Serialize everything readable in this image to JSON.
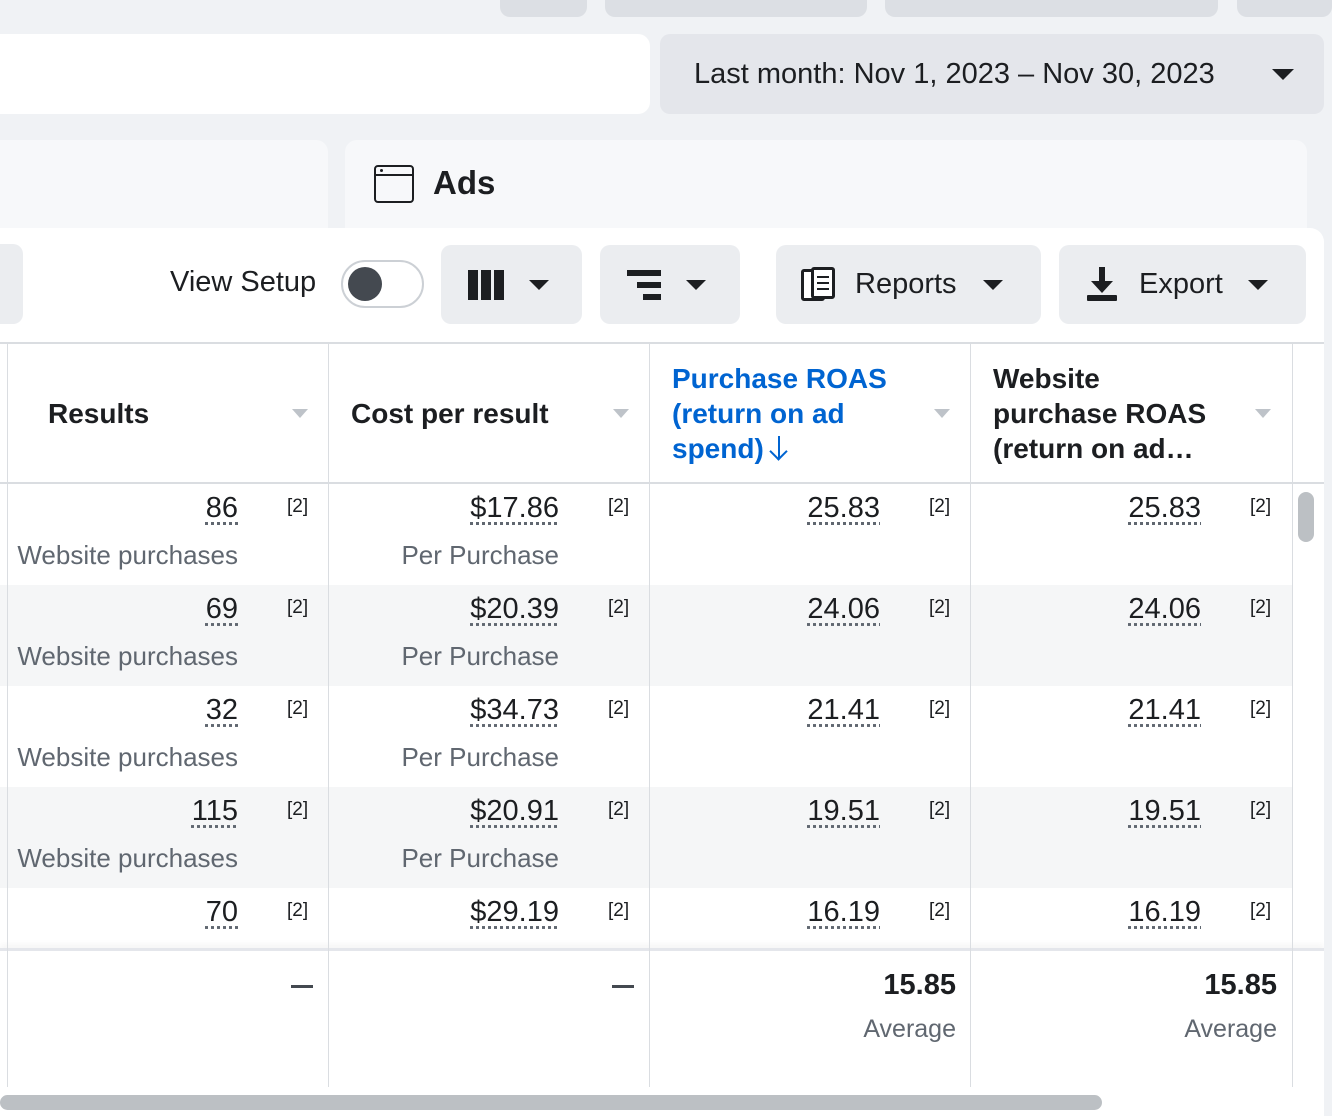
{
  "date_range": {
    "label": "Last month: Nov 1, 2023 – Nov 30, 2023"
  },
  "tabs": {
    "ads_label": "Ads"
  },
  "toolbar": {
    "view_setup_label": "View Setup",
    "reports_label": "Reports",
    "export_label": "Export"
  },
  "table": {
    "headers": {
      "results": "Results",
      "cost_per_result": "Cost per result",
      "purchase_roas": "Purchase ROAS (return on ad spend)",
      "website_roas_line1": "Website",
      "website_roas_line2": "purchase ROAS",
      "website_roas_line3": "(return on ad…"
    },
    "ref_marker": "[2]",
    "rows": [
      {
        "results": "86",
        "results_sub": "Website purchases",
        "cost": "$17.86",
        "cost_sub": "Per Purchase",
        "roas": "25.83",
        "web_roas": "25.83"
      },
      {
        "results": "69",
        "results_sub": "Website purchases",
        "cost": "$20.39",
        "cost_sub": "Per Purchase",
        "roas": "24.06",
        "web_roas": "24.06"
      },
      {
        "results": "32",
        "results_sub": "Website purchases",
        "cost": "$34.73",
        "cost_sub": "Per Purchase",
        "roas": "21.41",
        "web_roas": "21.41"
      },
      {
        "results": "115",
        "results_sub": "Website purchases",
        "cost": "$20.91",
        "cost_sub": "Per Purchase",
        "roas": "19.51",
        "web_roas": "19.51"
      },
      {
        "results": "70",
        "results_sub": "",
        "cost": "$29.19",
        "cost_sub": "",
        "roas": "16.19",
        "web_roas": "16.19"
      }
    ],
    "footer": {
      "roas": "15.85",
      "roas_sub": "Average",
      "web_roas": "15.85",
      "web_roas_sub": "Average"
    }
  },
  "colors": {
    "accent_blue": "#0064d1",
    "text": "#1c1e21",
    "muted": "#606770"
  }
}
